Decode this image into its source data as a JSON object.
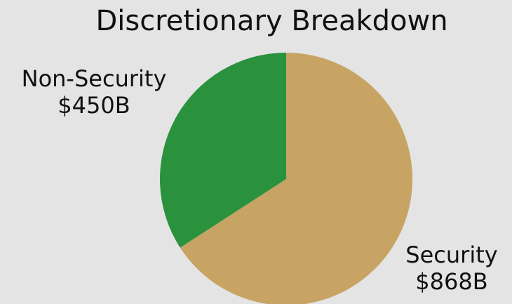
{
  "chart_data": {
    "type": "pie",
    "title": "Discretionary Breakdown",
    "slices": [
      {
        "name": "Security",
        "value": 868,
        "value_label": "$868B",
        "color": "#c7a464"
      },
      {
        "name": "Non-Security",
        "value": 450,
        "value_label": "$450B",
        "color": "#2a923d"
      }
    ],
    "legend": "none"
  }
}
